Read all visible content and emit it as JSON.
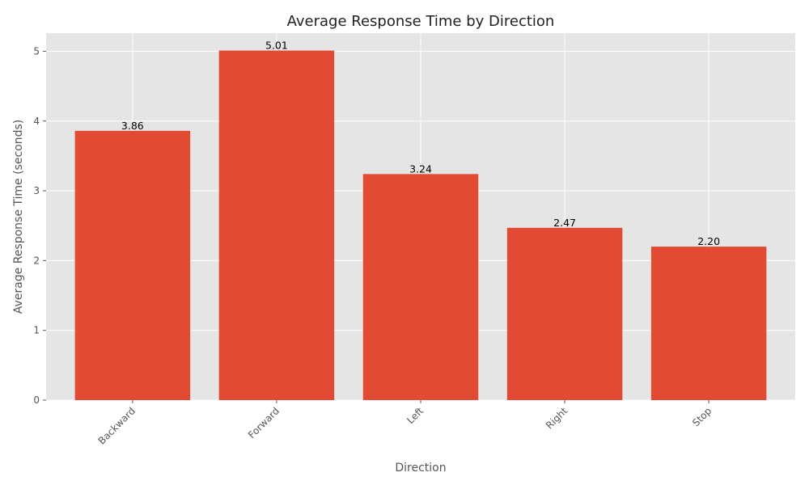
{
  "chart_data": {
    "type": "bar",
    "title": "Average Response Time by Direction",
    "xlabel": "Direction",
    "ylabel": "Average Response Time (seconds)",
    "categories": [
      "Backward",
      "Forward",
      "Left",
      "Right",
      "Stop"
    ],
    "values": [
      3.86,
      5.01,
      3.24,
      2.47,
      2.2
    ],
    "data_labels": [
      "3.86",
      "5.01",
      "3.24",
      "2.47",
      "2.20"
    ],
    "ylim": [
      0,
      5.26
    ],
    "yticks": [
      0,
      1,
      2,
      3,
      4,
      5
    ],
    "ytick_labels": [
      "0",
      "1",
      "2",
      "3",
      "4",
      "5"
    ],
    "grid": true,
    "legend": "none",
    "x_tick_rotation_deg": 45,
    "colors": {
      "bar": "#E24A33",
      "plot_background": "#E5E5E5",
      "grid": "#FFFFFF"
    }
  }
}
